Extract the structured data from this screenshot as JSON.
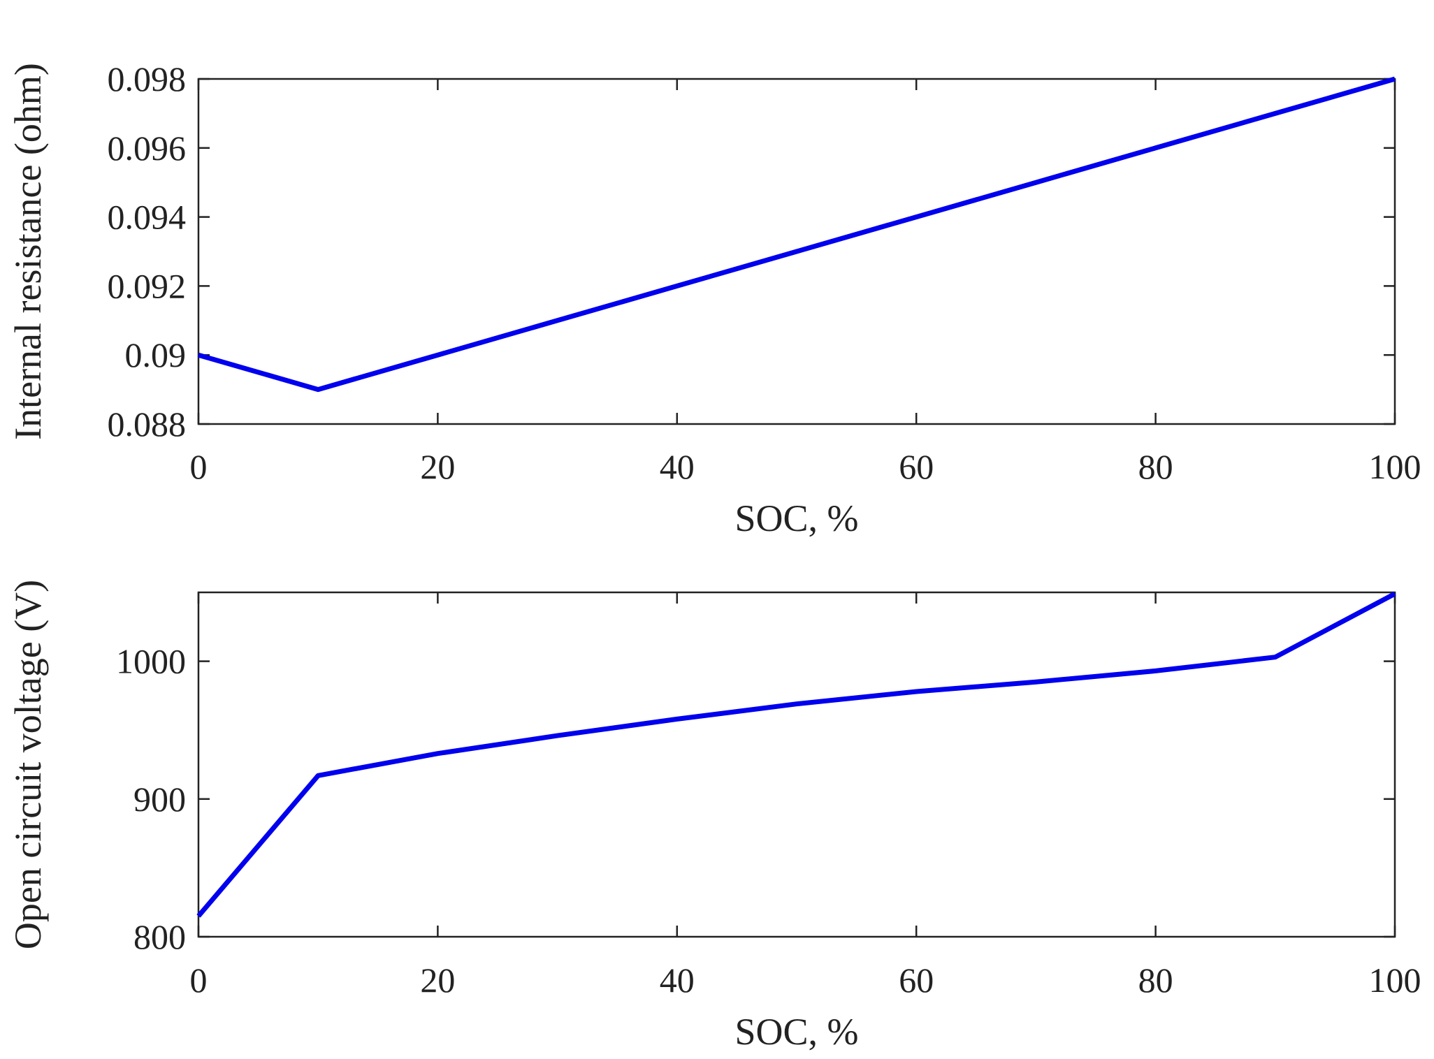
{
  "chart_data": [
    {
      "type": "line",
      "title": "",
      "xlabel": "SOC, %",
      "ylabel": "Internal resistance (ohm)",
      "xlim": [
        0,
        100
      ],
      "ylim": [
        0.088,
        0.098
      ],
      "x_ticks": [
        "0",
        "20",
        "40",
        "60",
        "80",
        "100"
      ],
      "y_ticks": [
        "0.088",
        "0.09",
        "0.092",
        "0.094",
        "0.096",
        "0.098"
      ],
      "grid": false,
      "series": [
        {
          "color": "#0000ee",
          "x": [
            0,
            10,
            20,
            30,
            40,
            50,
            60,
            70,
            80,
            90,
            100
          ],
          "y": [
            0.09,
            0.089,
            0.09,
            0.091,
            0.092,
            0.093,
            0.094,
            0.095,
            0.096,
            0.097,
            0.098
          ]
        }
      ]
    },
    {
      "type": "line",
      "title": "",
      "xlabel": "SOC, %",
      "ylabel": "Open circuit voltage (V)",
      "xlim": [
        0,
        100
      ],
      "ylim": [
        800,
        1050
      ],
      "x_ticks": [
        "0",
        "20",
        "40",
        "60",
        "80",
        "100"
      ],
      "y_ticks": [
        "800",
        "900",
        "1000"
      ],
      "grid": false,
      "series": [
        {
          "color": "#0000ee",
          "x": [
            0,
            10,
            20,
            30,
            40,
            50,
            60,
            70,
            80,
            90,
            100
          ],
          "y": [
            815,
            917,
            933,
            946,
            958,
            969,
            978,
            985,
            993,
            1003,
            1049
          ]
        }
      ]
    }
  ]
}
